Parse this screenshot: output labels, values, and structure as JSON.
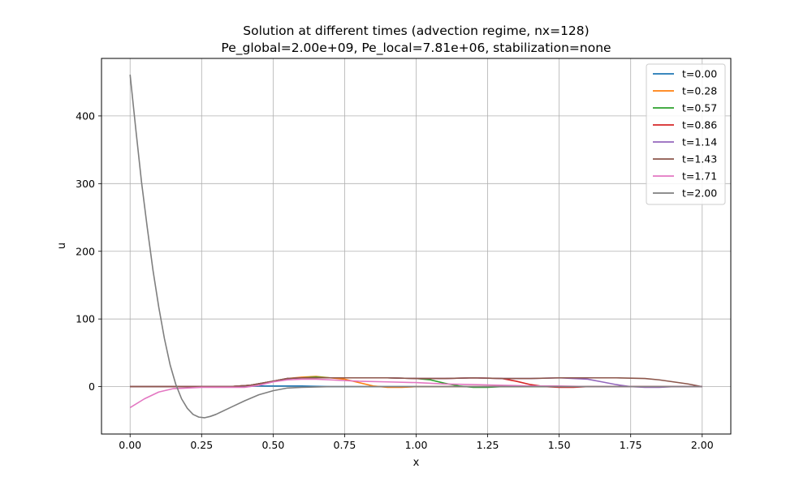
{
  "chart_data": {
    "type": "line",
    "title_line1": "Solution at different times (advection regime, nx=128)",
    "title_line2": "Pe_global=2.00e+09, Pe_local=7.81e+06, stabilization=none",
    "xlabel": "x",
    "ylabel": "u",
    "xlim": [
      -0.1,
      2.1
    ],
    "ylim": [
      -70,
      485
    ],
    "xticks": [
      0.0,
      0.25,
      0.5,
      0.75,
      1.0,
      1.25,
      1.5,
      1.75,
      2.0
    ],
    "xtick_labels": [
      "0.00",
      "0.25",
      "0.50",
      "0.75",
      "1.00",
      "1.25",
      "1.50",
      "1.75",
      "2.00"
    ],
    "yticks": [
      0,
      100,
      200,
      300,
      400
    ],
    "ytick_labels": [
      "0",
      "100",
      "200",
      "300",
      "400"
    ],
    "grid": true,
    "legend_position": "top-right",
    "series": [
      {
        "name": "t=0.00",
        "color": "#1f77b4",
        "points": [
          [
            0,
            0
          ],
          [
            0.1,
            0
          ],
          [
            0.2,
            0
          ],
          [
            0.3,
            0
          ],
          [
            0.4,
            0
          ],
          [
            0.45,
            1
          ],
          [
            0.5,
            1
          ],
          [
            0.55,
            1
          ],
          [
            0.6,
            1
          ],
          [
            0.7,
            0
          ],
          [
            0.8,
            0
          ],
          [
            0.9,
            0
          ],
          [
            1.0,
            0
          ],
          [
            1.2,
            0
          ],
          [
            1.4,
            0
          ],
          [
            1.6,
            0
          ],
          [
            1.8,
            0
          ],
          [
            2.0,
            0
          ]
        ]
      },
      {
        "name": "t=0.28",
        "color": "#ff7f0e",
        "points": [
          [
            0,
            0
          ],
          [
            0.2,
            0
          ],
          [
            0.35,
            0
          ],
          [
            0.42,
            2
          ],
          [
            0.5,
            8
          ],
          [
            0.55,
            12
          ],
          [
            0.6,
            14
          ],
          [
            0.65,
            15
          ],
          [
            0.7,
            13
          ],
          [
            0.75,
            11
          ],
          [
            0.8,
            6
          ],
          [
            0.85,
            1
          ],
          [
            0.9,
            -1
          ],
          [
            0.95,
            -1
          ],
          [
            1.0,
            0
          ],
          [
            1.2,
            0
          ],
          [
            1.4,
            0
          ],
          [
            1.6,
            0
          ],
          [
            1.8,
            0
          ],
          [
            2.0,
            0
          ]
        ]
      },
      {
        "name": "t=0.57",
        "color": "#2ca02c",
        "points": [
          [
            0,
            0
          ],
          [
            0.2,
            0
          ],
          [
            0.35,
            0
          ],
          [
            0.42,
            2
          ],
          [
            0.5,
            8
          ],
          [
            0.55,
            12
          ],
          [
            0.6,
            13
          ],
          [
            0.65,
            14
          ],
          [
            0.7,
            13
          ],
          [
            0.8,
            13
          ],
          [
            0.9,
            13
          ],
          [
            1.0,
            12
          ],
          [
            1.05,
            10
          ],
          [
            1.1,
            5
          ],
          [
            1.15,
            1
          ],
          [
            1.2,
            -1
          ],
          [
            1.25,
            -1
          ],
          [
            1.3,
            0
          ],
          [
            1.5,
            0
          ],
          [
            1.7,
            0
          ],
          [
            2.0,
            0
          ]
        ]
      },
      {
        "name": "t=0.86",
        "color": "#d62728",
        "points": [
          [
            0,
            0
          ],
          [
            0.2,
            0
          ],
          [
            0.35,
            0
          ],
          [
            0.42,
            2
          ],
          [
            0.5,
            8
          ],
          [
            0.55,
            12
          ],
          [
            0.6,
            13
          ],
          [
            0.7,
            13
          ],
          [
            0.8,
            13
          ],
          [
            0.9,
            13
          ],
          [
            1.0,
            12
          ],
          [
            1.1,
            12
          ],
          [
            1.2,
            13
          ],
          [
            1.3,
            12
          ],
          [
            1.35,
            8
          ],
          [
            1.4,
            3
          ],
          [
            1.45,
            0
          ],
          [
            1.5,
            -1
          ],
          [
            1.55,
            -1
          ],
          [
            1.6,
            0
          ],
          [
            1.8,
            0
          ],
          [
            2.0,
            0
          ]
        ]
      },
      {
        "name": "t=1.14",
        "color": "#9467bd",
        "points": [
          [
            0,
            0
          ],
          [
            0.2,
            0
          ],
          [
            0.35,
            0
          ],
          [
            0.42,
            2
          ],
          [
            0.5,
            8
          ],
          [
            0.55,
            12
          ],
          [
            0.6,
            13
          ],
          [
            0.7,
            13
          ],
          [
            0.8,
            13
          ],
          [
            0.9,
            13
          ],
          [
            1.0,
            12
          ],
          [
            1.1,
            12
          ],
          [
            1.2,
            13
          ],
          [
            1.3,
            12
          ],
          [
            1.4,
            12
          ],
          [
            1.5,
            13
          ],
          [
            1.6,
            11
          ],
          [
            1.65,
            7
          ],
          [
            1.7,
            3
          ],
          [
            1.75,
            0
          ],
          [
            1.8,
            -1
          ],
          [
            1.85,
            -1
          ],
          [
            1.9,
            0
          ],
          [
            2.0,
            0
          ]
        ]
      },
      {
        "name": "t=1.43",
        "color": "#8c564b",
        "points": [
          [
            0,
            0
          ],
          [
            0.2,
            0
          ],
          [
            0.35,
            0
          ],
          [
            0.42,
            2
          ],
          [
            0.5,
            8
          ],
          [
            0.55,
            12
          ],
          [
            0.6,
            13
          ],
          [
            0.7,
            13
          ],
          [
            0.8,
            13
          ],
          [
            0.9,
            13
          ],
          [
            1.0,
            12
          ],
          [
            1.1,
            12
          ],
          [
            1.2,
            13
          ],
          [
            1.3,
            12
          ],
          [
            1.4,
            12
          ],
          [
            1.5,
            13
          ],
          [
            1.6,
            13
          ],
          [
            1.7,
            13
          ],
          [
            1.8,
            12
          ],
          [
            1.85,
            10
          ],
          [
            1.9,
            7
          ],
          [
            1.95,
            4
          ],
          [
            2.0,
            0
          ]
        ]
      },
      {
        "name": "t=1.71",
        "color": "#e377c2",
        "points": [
          [
            0,
            -31
          ],
          [
            0.05,
            -18
          ],
          [
            0.1,
            -8
          ],
          [
            0.15,
            -3
          ],
          [
            0.2,
            -2
          ],
          [
            0.25,
            -1
          ],
          [
            0.3,
            -1
          ],
          [
            0.35,
            -1
          ],
          [
            0.4,
            -1
          ],
          [
            0.45,
            2
          ],
          [
            0.5,
            7
          ],
          [
            0.55,
            10
          ],
          [
            0.6,
            11
          ],
          [
            0.65,
            11
          ],
          [
            0.7,
            10
          ],
          [
            0.8,
            8
          ],
          [
            0.9,
            7
          ],
          [
            1.0,
            6
          ],
          [
            1.1,
            4
          ],
          [
            1.2,
            3
          ],
          [
            1.3,
            2
          ],
          [
            1.4,
            1
          ],
          [
            1.5,
            1
          ],
          [
            1.6,
            0
          ],
          [
            1.8,
            0
          ],
          [
            2.0,
            0
          ]
        ]
      },
      {
        "name": "t=2.00",
        "color": "#7f7f7f",
        "points": [
          [
            0,
            461
          ],
          [
            0.02,
            380
          ],
          [
            0.04,
            302
          ],
          [
            0.06,
            235
          ],
          [
            0.08,
            172
          ],
          [
            0.1,
            118
          ],
          [
            0.12,
            71
          ],
          [
            0.14,
            32
          ],
          [
            0.16,
            3
          ],
          [
            0.18,
            -18
          ],
          [
            0.2,
            -32
          ],
          [
            0.22,
            -41
          ],
          [
            0.24,
            -45
          ],
          [
            0.26,
            -46
          ],
          [
            0.28,
            -44
          ],
          [
            0.3,
            -41
          ],
          [
            0.35,
            -31
          ],
          [
            0.4,
            -21
          ],
          [
            0.45,
            -12
          ],
          [
            0.5,
            -6
          ],
          [
            0.55,
            -2
          ],
          [
            0.6,
            -1
          ],
          [
            0.7,
            0
          ],
          [
            0.8,
            0
          ],
          [
            1.0,
            0
          ],
          [
            1.2,
            0
          ],
          [
            1.4,
            0
          ],
          [
            1.6,
            0
          ],
          [
            1.8,
            0
          ],
          [
            2.0,
            0
          ]
        ]
      }
    ]
  }
}
